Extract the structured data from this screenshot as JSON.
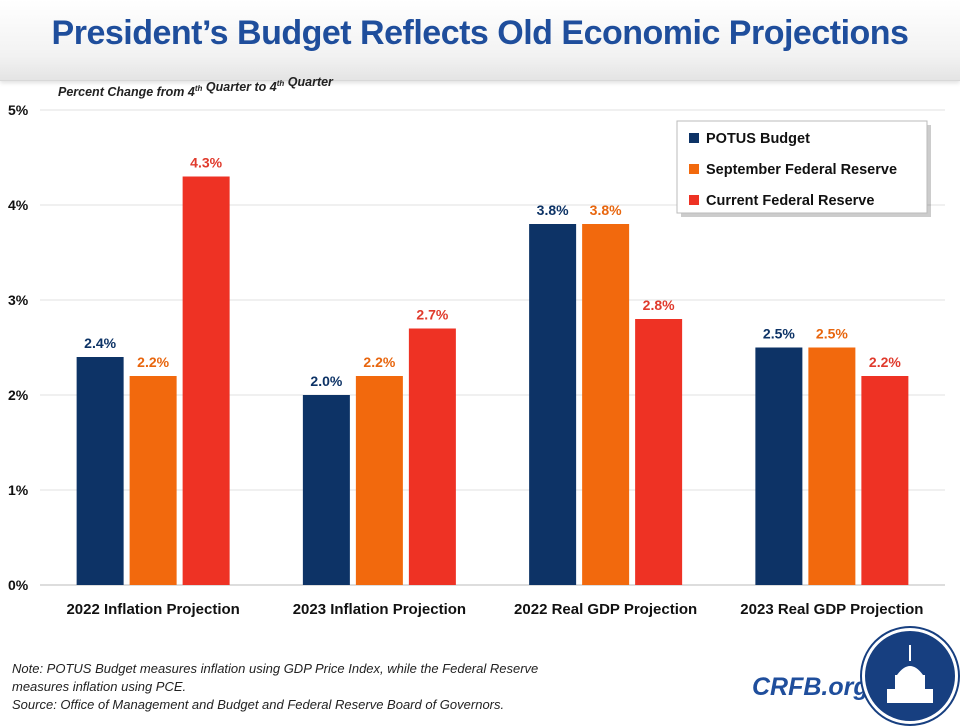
{
  "title": "President’s Budget Reflects Old Economic Projections",
  "footer": {
    "note_line1": "Note: POTUS Budget measures inflation using GDP Price Index, while the Federal Reserve",
    "note_line2": "measures inflation using PCE.",
    "source": "Source: Office of Management and Budget and Federal Reserve Board of Governors.",
    "brand": "CRFB.org"
  },
  "chart_data": {
    "type": "bar",
    "subtitle": "Percent Change from 4th Quarter to 4th Quarter",
    "categories": [
      "2022 Inflation Projection",
      "2023 Inflation Projection",
      "2022 Real GDP Projection",
      "2023 Real GDP Projection"
    ],
    "series": [
      {
        "name": "POTUS Budget",
        "color": "#0d3366",
        "label_color": "#0d3366",
        "values": [
          2.4,
          2.0,
          3.8,
          2.5
        ]
      },
      {
        "name": "September Federal Reserve",
        "color": "#f2690d",
        "label_color": "#e8660e",
        "values": [
          2.2,
          2.2,
          3.8,
          2.5
        ]
      },
      {
        "name": "Current Federal Reserve",
        "color": "#ee3224",
        "label_color": "#e03a2c",
        "values": [
          4.3,
          2.7,
          2.8,
          2.2
        ]
      }
    ],
    "yticks": [
      "0%",
      "1%",
      "2%",
      "3%",
      "4%",
      "5%"
    ],
    "ylim": [
      0,
      5
    ],
    "grid": true,
    "legend": "top-right",
    "value_suffix": "%"
  }
}
